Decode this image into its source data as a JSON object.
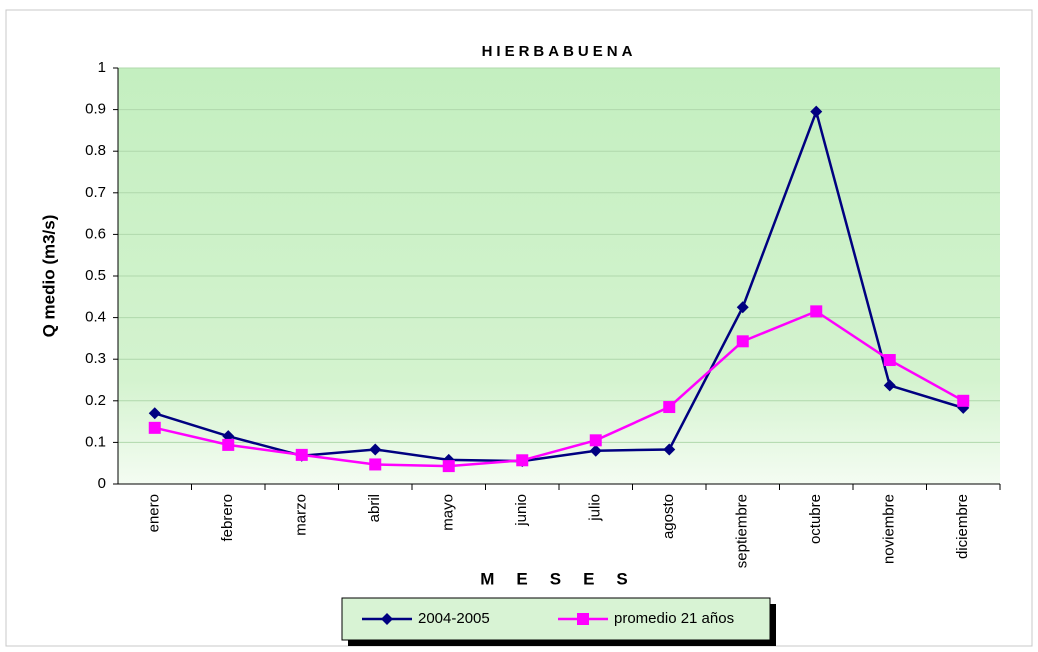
{
  "chart_data": {
    "type": "line",
    "title": "HIERBABUENA",
    "x_label": "MESES",
    "y_label": "Q medio (m3/s)",
    "categories": [
      "enero",
      "febrero",
      "marzo",
      "abril",
      "mayo",
      "junio",
      "julio",
      "agosto",
      "septiembre",
      "octubre",
      "noviembre",
      "diciembre"
    ],
    "series": [
      {
        "name": "2004-2005",
        "color": "#000080",
        "marker": "diamond",
        "values": [
          0.17,
          0.115,
          0.068,
          0.083,
          0.058,
          0.055,
          0.08,
          0.083,
          0.425,
          0.895,
          0.237,
          0.183
        ]
      },
      {
        "name": "promedio 21 años",
        "color": "#ff00ff",
        "marker": "square",
        "values": [
          0.135,
          0.094,
          0.07,
          0.047,
          0.043,
          0.057,
          0.105,
          0.185,
          0.343,
          0.415,
          0.298,
          0.2
        ]
      }
    ],
    "ylim": [
      0,
      1
    ],
    "yticks": [
      0,
      0.1,
      0.2,
      0.3,
      0.4,
      0.5,
      0.6,
      0.7,
      0.8,
      0.9,
      1
    ],
    "grid": true,
    "legend": "bottom"
  }
}
